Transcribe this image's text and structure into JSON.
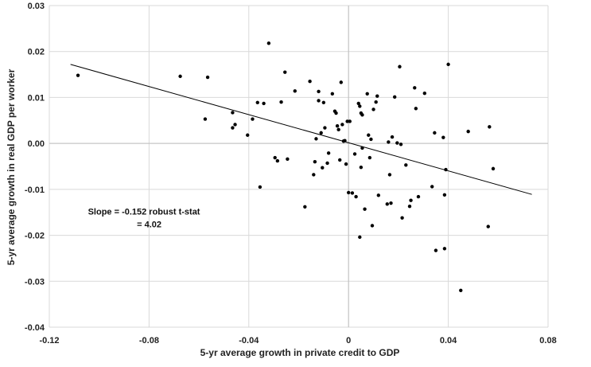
{
  "chart_data": {
    "type": "scatter",
    "title": "",
    "xlabel": "5-yr average growth in private credit to GDP",
    "ylabel": "5-yr average growth in real GDP per worker",
    "xlim": [
      -0.12,
      0.08
    ],
    "ylim": [
      -0.04,
      0.03
    ],
    "xticks": [
      -0.12,
      -0.08,
      -0.04,
      0,
      0.04,
      0.08
    ],
    "xtick_labels": [
      "-0.12",
      "-0.08",
      "-0.04",
      "0",
      "0.04",
      "0.08"
    ],
    "yticks": [
      -0.04,
      -0.03,
      -0.02,
      -0.01,
      0,
      0.01,
      0.02,
      0.03
    ],
    "ytick_labels": [
      "-0.04",
      "-0.03",
      "-0.02",
      "-0.01",
      "0.00",
      "0.01",
      "0.02",
      "0.03"
    ],
    "grid": "vertical and horizontal major gridlines",
    "legend": "none",
    "colors": {
      "points": "#000000",
      "trendline": "#000000",
      "grid": "#d9d9d9",
      "axis": "#bfbfbf"
    },
    "annotation": {
      "lines": [
        "Slope = -0.152 robust t-stat",
        "= 4.02"
      ],
      "anchor_x": -0.1045,
      "anchor_y": -0.0155
    },
    "trendline": {
      "x": [
        -0.1115,
        0.0735
      ],
      "y": [
        0.0172,
        -0.0111
      ]
    },
    "points": [
      {
        "x": -0.1085,
        "y": 0.0148
      },
      {
        "x": -0.0675,
        "y": 0.0146
      },
      {
        "x": -0.0575,
        "y": 0.0053
      },
      {
        "x": -0.0565,
        "y": 0.0144
      },
      {
        "x": -0.0465,
        "y": 0.0067
      },
      {
        "x": -0.0465,
        "y": 0.0034
      },
      {
        "x": -0.0455,
        "y": 0.0041
      },
      {
        "x": -0.0405,
        "y": 0.0018
      },
      {
        "x": -0.0385,
        "y": 0.0053
      },
      {
        "x": -0.0365,
        "y": 0.0089
      },
      {
        "x": -0.0355,
        "y": -0.0095
      },
      {
        "x": -0.034,
        "y": 0.0087
      },
      {
        "x": -0.032,
        "y": 0.0218
      },
      {
        "x": -0.0295,
        "y": -0.0031
      },
      {
        "x": -0.0285,
        "y": -0.0038
      },
      {
        "x": -0.027,
        "y": 0.009
      },
      {
        "x": -0.0255,
        "y": 0.0155
      },
      {
        "x": -0.0245,
        "y": -0.0034
      },
      {
        "x": -0.0215,
        "y": 0.0114
      },
      {
        "x": -0.0175,
        "y": -0.0138
      },
      {
        "x": -0.0155,
        "y": 0.0135
      },
      {
        "x": -0.014,
        "y": -0.0068
      },
      {
        "x": -0.0135,
        "y": -0.004
      },
      {
        "x": -0.013,
        "y": 0.001
      },
      {
        "x": -0.012,
        "y": 0.0113
      },
      {
        "x": -0.012,
        "y": 0.0093
      },
      {
        "x": -0.011,
        "y": 0.0023
      },
      {
        "x": -0.0105,
        "y": -0.0053
      },
      {
        "x": -0.01,
        "y": 0.0089
      },
      {
        "x": -0.0095,
        "y": 0.0034
      },
      {
        "x": -0.0085,
        "y": -0.0043
      },
      {
        "x": -0.008,
        "y": -0.0021
      },
      {
        "x": -0.0065,
        "y": 0.0108
      },
      {
        "x": -0.0055,
        "y": 0.007
      },
      {
        "x": -0.005,
        "y": 0.0066
      },
      {
        "x": -0.0045,
        "y": 0.0038
      },
      {
        "x": -0.004,
        "y": 0.003
      },
      {
        "x": -0.0035,
        "y": -0.0036
      },
      {
        "x": -0.003,
        "y": 0.0133
      },
      {
        "x": -0.0025,
        "y": 0.0041
      },
      {
        "x": -0.002,
        "y": 0.0005
      },
      {
        "x": -0.0015,
        "y": 0.0006
      },
      {
        "x": -0.001,
        "y": -0.0045
      },
      {
        "x": -0.0005,
        "y": 0.0048
      },
      {
        "x": 0.0,
        "y": -0.0107
      },
      {
        "x": 0.0005,
        "y": 0.0048
      },
      {
        "x": 0.0015,
        "y": -0.0108
      },
      {
        "x": 0.0025,
        "y": -0.0023
      },
      {
        "x": 0.003,
        "y": -0.0116
      },
      {
        "x": 0.004,
        "y": 0.0087
      },
      {
        "x": 0.0045,
        "y": 0.0081
      },
      {
        "x": 0.0045,
        "y": -0.0204
      },
      {
        "x": 0.005,
        "y": -0.0052
      },
      {
        "x": 0.005,
        "y": 0.0066
      },
      {
        "x": 0.0055,
        "y": 0.0062
      },
      {
        "x": 0.0055,
        "y": -0.001
      },
      {
        "x": 0.0065,
        "y": -0.0143
      },
      {
        "x": 0.0075,
        "y": 0.0108
      },
      {
        "x": 0.008,
        "y": 0.0018
      },
      {
        "x": 0.0085,
        "y": -0.0031
      },
      {
        "x": 0.009,
        "y": 0.0009
      },
      {
        "x": 0.0095,
        "y": -0.0179
      },
      {
        "x": 0.01,
        "y": 0.0074
      },
      {
        "x": 0.011,
        "y": 0.009
      },
      {
        "x": 0.0115,
        "y": 0.0103
      },
      {
        "x": 0.012,
        "y": -0.0113
      },
      {
        "x": 0.0155,
        "y": -0.0132
      },
      {
        "x": 0.016,
        "y": 0.0003
      },
      {
        "x": 0.0165,
        "y": -0.0068
      },
      {
        "x": 0.017,
        "y": -0.013
      },
      {
        "x": 0.0175,
        "y": 0.0014
      },
      {
        "x": 0.0185,
        "y": 0.0101
      },
      {
        "x": 0.0195,
        "y": 0.0001
      },
      {
        "x": 0.0205,
        "y": 0.0167
      },
      {
        "x": 0.021,
        "y": -0.0002
      },
      {
        "x": 0.0215,
        "y": -0.0162
      },
      {
        "x": 0.023,
        "y": -0.0047
      },
      {
        "x": 0.0245,
        "y": -0.0137
      },
      {
        "x": 0.025,
        "y": -0.0124
      },
      {
        "x": 0.0265,
        "y": 0.0121
      },
      {
        "x": 0.027,
        "y": 0.0076
      },
      {
        "x": 0.028,
        "y": -0.0116
      },
      {
        "x": 0.0305,
        "y": 0.0109
      },
      {
        "x": 0.0335,
        "y": -0.0094
      },
      {
        "x": 0.0345,
        "y": 0.0023
      },
      {
        "x": 0.035,
        "y": -0.0233
      },
      {
        "x": 0.038,
        "y": 0.0013
      },
      {
        "x": 0.0385,
        "y": -0.0229
      },
      {
        "x": 0.0385,
        "y": -0.0112
      },
      {
        "x": 0.039,
        "y": -0.0057
      },
      {
        "x": 0.04,
        "y": 0.0172
      },
      {
        "x": 0.045,
        "y": -0.032
      },
      {
        "x": 0.048,
        "y": 0.0026
      },
      {
        "x": 0.056,
        "y": -0.0181
      },
      {
        "x": 0.0565,
        "y": 0.0036
      },
      {
        "x": 0.058,
        "y": -0.0055
      }
    ]
  }
}
